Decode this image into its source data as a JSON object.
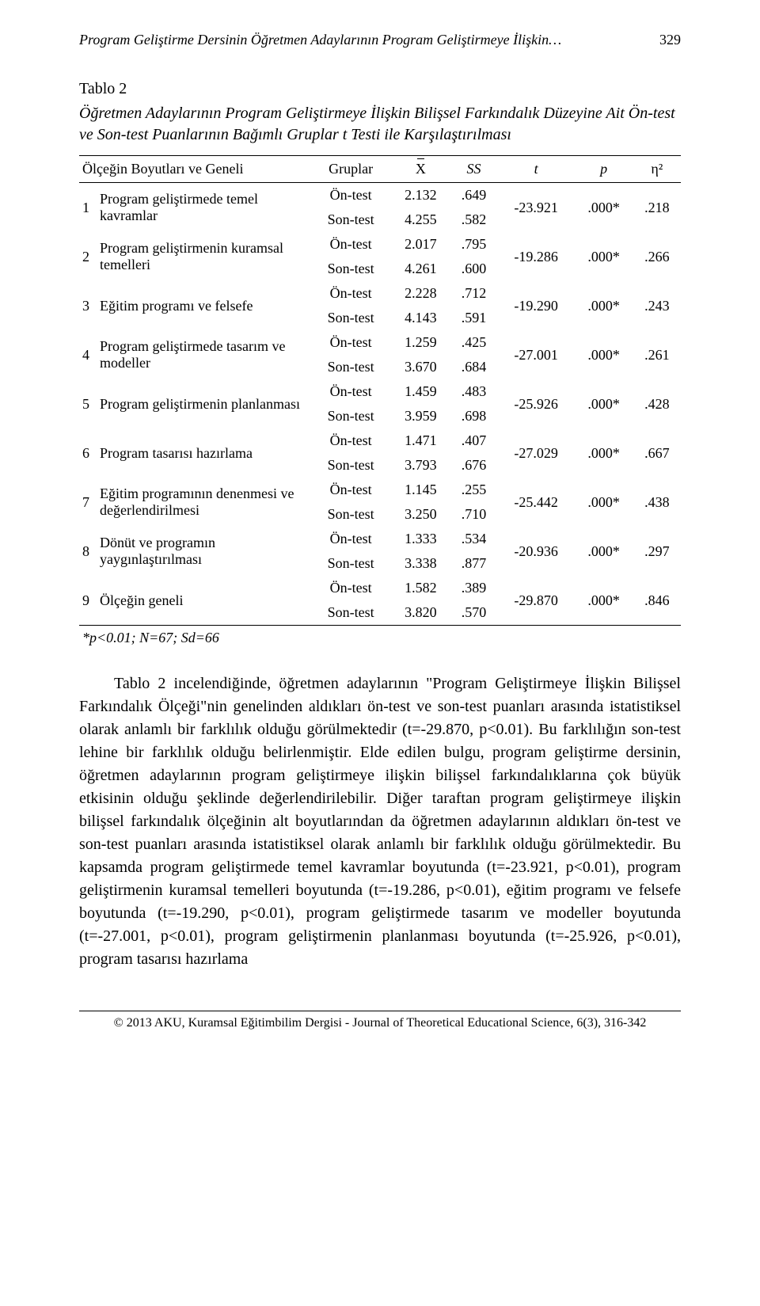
{
  "runningHeader": {
    "title": "Program Geliştirme Dersinin Öğretmen Adaylarının Program Geliştirmeye İlişkin…",
    "pageNumber": "329"
  },
  "tableTitle": "Tablo 2",
  "tableCaption": "Öğretmen Adaylarının Program Geliştirmeye İlişkin Bilişsel Farkındalık Düzeyine Ait Ön-test ve Son-test Puanlarının Bağımlı Gruplar t Testi ile Karşılaştırılması",
  "columns": {
    "scale": "Ölçeğin Boyutları ve Geneli",
    "groups": "Gruplar",
    "mean": "X",
    "ss": "SS",
    "t": "t",
    "p": "p",
    "eta": "η²"
  },
  "labels": {
    "pre": "Ön-test",
    "post": "Son-test"
  },
  "rows": [
    {
      "idx": "1",
      "name": "Program geliştirmede temel kavramlar",
      "preMean": "2.132",
      "preSS": ".649",
      "postMean": "4.255",
      "postSS": ".582",
      "t": "-23.921",
      "p": ".000*",
      "eta": ".218"
    },
    {
      "idx": "2",
      "name": "Program geliştirmenin kuramsal temelleri",
      "preMean": "2.017",
      "preSS": ".795",
      "postMean": "4.261",
      "postSS": ".600",
      "t": "-19.286",
      "p": ".000*",
      "eta": ".266"
    },
    {
      "idx": "3",
      "name": "Eğitim programı ve felsefe",
      "preMean": "2.228",
      "preSS": ".712",
      "postMean": "4.143",
      "postSS": ".591",
      "t": "-19.290",
      "p": ".000*",
      "eta": ".243"
    },
    {
      "idx": "4",
      "name": "Program geliştirmede tasarım ve modeller",
      "preMean": "1.259",
      "preSS": ".425",
      "postMean": "3.670",
      "postSS": ".684",
      "t": "-27.001",
      "p": ".000*",
      "eta": ".261"
    },
    {
      "idx": "5",
      "name": "Program geliştirmenin planlanması",
      "preMean": "1.459",
      "preSS": ".483",
      "postMean": "3.959",
      "postSS": ".698",
      "t": "-25.926",
      "p": ".000*",
      "eta": ".428"
    },
    {
      "idx": "6",
      "name": "Program tasarısı hazırlama",
      "preMean": "1.471",
      "preSS": ".407",
      "postMean": "3.793",
      "postSS": ".676",
      "t": "-27.029",
      "p": ".000*",
      "eta": ".667"
    },
    {
      "idx": "7",
      "name": "Eğitim programının denenmesi ve değerlendirilmesi",
      "preMean": "1.145",
      "preSS": ".255",
      "postMean": "3.250",
      "postSS": ".710",
      "t": "-25.442",
      "p": ".000*",
      "eta": ".438"
    },
    {
      "idx": "8",
      "name": "Dönüt ve programın yaygınlaştırılması",
      "preMean": "1.333",
      "preSS": ".534",
      "postMean": "3.338",
      "postSS": ".877",
      "t": "-20.936",
      "p": ".000*",
      "eta": ".297"
    },
    {
      "idx": "9",
      "name": "Ölçeğin geneli",
      "preMean": "1.582",
      "preSS": ".389",
      "postMean": "3.820",
      "postSS": ".570",
      "t": "-29.870",
      "p": ".000*",
      "eta": ".846"
    }
  ],
  "footnote": "*p<0.01; N=67; Sd=66",
  "paragraph": "Tablo 2 incelendiğinde, öğretmen adaylarının \"Program Geliştirmeye İlişkin Bilişsel Farkındalık Ölçeği\"nin genelinden aldıkları ön-test ve son-test puanları arasında istatistiksel olarak anlamlı bir farklılık olduğu görülmektedir (t=-29.870, p<0.01). Bu farklılığın son-test lehine bir farklılık olduğu belirlenmiştir. Elde edilen bulgu, program geliştirme dersinin, öğretmen adaylarının program geliştirmeye ilişkin bilişsel farkındalıklarına çok büyük etkisinin olduğu şeklinde değerlendirilebilir. Diğer taraftan program geliştirmeye ilişkin bilişsel farkındalık ölçeğinin alt boyutlarından da öğretmen adaylarının aldıkları ön-test ve son-test puanları arasında istatistiksel olarak anlamlı bir farklılık olduğu görülmektedir. Bu kapsamda program geliştirmede temel kavramlar boyutunda (t=-23.921, p<0.01), program geliştirmenin kuramsal temelleri boyutunda (t=-19.286, p<0.01), eğitim programı ve felsefe boyutunda (t=-19.290, p<0.01), program geliştirmede tasarım ve modeller boyutunda (t=-27.001, p<0.01), program geliştirmenin planlanması boyutunda (t=-25.926, p<0.01), program tasarısı hazırlama",
  "footer": "© 2013 AKU, Kuramsal Eğitimbilim Dergisi - Journal of Theoretical Educational Science, 6(3), 316-342"
}
